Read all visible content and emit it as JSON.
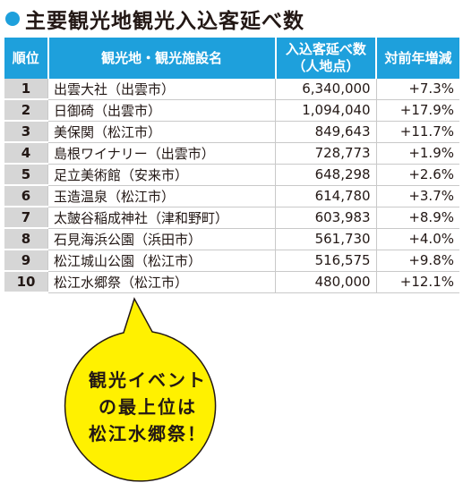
{
  "title": "主要観光地観光入込客延べ数",
  "table": {
    "header": [
      "順位",
      "観光地・観光施設名",
      [
        "入込客延べ数",
        "（人地点）"
      ],
      "対前年増減"
    ],
    "rows": [
      [
        "1",
        "出雲大社（出雲市）",
        "6,340,000",
        "+7.3%"
      ],
      [
        "2",
        "日御碕（出雲市）",
        "1,094,040",
        "+17.9%"
      ],
      [
        "3",
        "美保関（松江市）",
        "849,643",
        "+11.7%"
      ],
      [
        "4",
        "島根ワイナリー（出雲市）",
        "728,773",
        "+1.9%"
      ],
      [
        "5",
        "足立美術館（安来市）",
        "648,298",
        "+2.6%"
      ],
      [
        "6",
        "玉造温泉（松江市）",
        "614,780",
        "+3.7%"
      ],
      [
        "7",
        "太皷谷稲成神社（津和野町）",
        "603,983",
        "+8.9%"
      ],
      [
        "8",
        "石見海浜公園（浜田市）",
        "561,730",
        "+4.0%"
      ],
      [
        "9",
        "松江城山公園（松江市）",
        "516,575",
        "+9.8%"
      ],
      [
        "10",
        "松江水郷祭（松江市）",
        "480,000",
        "+12.1%"
      ]
    ]
  },
  "bubble": [
    "観光イベント",
    "の最上位は",
    "松江水郷祭！"
  ]
}
